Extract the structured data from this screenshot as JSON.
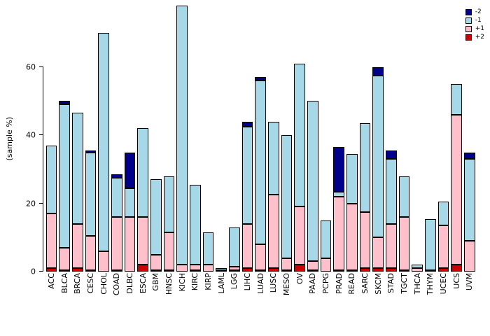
{
  "chart_data": {
    "type": "bar",
    "stacked": true,
    "title": "",
    "xlabel": "",
    "ylabel": "(sample %)",
    "yticks": [
      0,
      20,
      40,
      60
    ],
    "ymax": 78,
    "grid": false,
    "legend_position": "top-right",
    "legend": [
      {
        "label": "-2",
        "color": "#00008B"
      },
      {
        "label": "-1",
        "color": "#A6D8E8"
      },
      {
        "label": "+1",
        "color": "#FFC0CB"
      },
      {
        "label": "+2",
        "color": "#CC0000"
      }
    ],
    "categories": [
      "ACC",
      "BLCA",
      "BRCA",
      "CESC",
      "CHOL",
      "COAD",
      "DLBC",
      "ESCA",
      "GBM",
      "HNSC",
      "KICH",
      "KIRC",
      "KIRP",
      "LAML",
      "LGG",
      "LIHC",
      "LUAD",
      "LUSC",
      "MESO",
      "OV",
      "PAAD",
      "PCPG",
      "PRAD",
      "READ",
      "SARC",
      "SKCM",
      "STAD",
      "TGCT",
      "THCA",
      "THYM",
      "UCEC",
      "UCS",
      "UVM"
    ],
    "series": [
      {
        "name": "+2",
        "color": "#CC0000",
        "values": [
          1,
          0.5,
          1,
          0.5,
          0,
          0.5,
          0,
          2,
          0.5,
          0.5,
          0,
          0.5,
          0,
          0,
          0.5,
          1,
          0.5,
          1,
          0.5,
          2,
          0.5,
          0,
          0.5,
          0.5,
          1,
          1,
          1,
          0.5,
          0,
          0,
          1,
          2,
          0
        ]
      },
      {
        "name": "+1",
        "color": "#FFC0CB",
        "values": [
          16,
          6.5,
          13,
          10,
          6,
          15.5,
          16,
          14,
          4.5,
          11,
          2,
          1.5,
          2,
          0.5,
          1,
          13,
          7.5,
          21.5,
          3.5,
          17,
          2.5,
          4,
          21.5,
          19.5,
          16.5,
          9,
          13,
          15.5,
          1,
          0.5,
          12.5,
          44,
          9
        ]
      },
      {
        "name": "-1",
        "color": "#A6D8E8",
        "values": [
          20,
          42,
          32.5,
          24.5,
          64,
          11.5,
          8.5,
          26,
          22,
          16.5,
          76,
          23.5,
          9.5,
          0.5,
          11.5,
          28.5,
          48,
          21.5,
          36,
          42,
          47,
          11,
          1.5,
          14.5,
          26,
          47.5,
          19,
          12,
          1,
          15,
          7,
          9,
          24
        ]
      },
      {
        "name": "-2",
        "color": "#00008B",
        "values": [
          0,
          1,
          0,
          0.5,
          0,
          1,
          10.5,
          0,
          0,
          0,
          0,
          0,
          0,
          0,
          0,
          1.5,
          1,
          0,
          0,
          0,
          0,
          0,
          13,
          0,
          0,
          2.5,
          2.5,
          0,
          0,
          0,
          0,
          0,
          2
        ]
      }
    ]
  }
}
